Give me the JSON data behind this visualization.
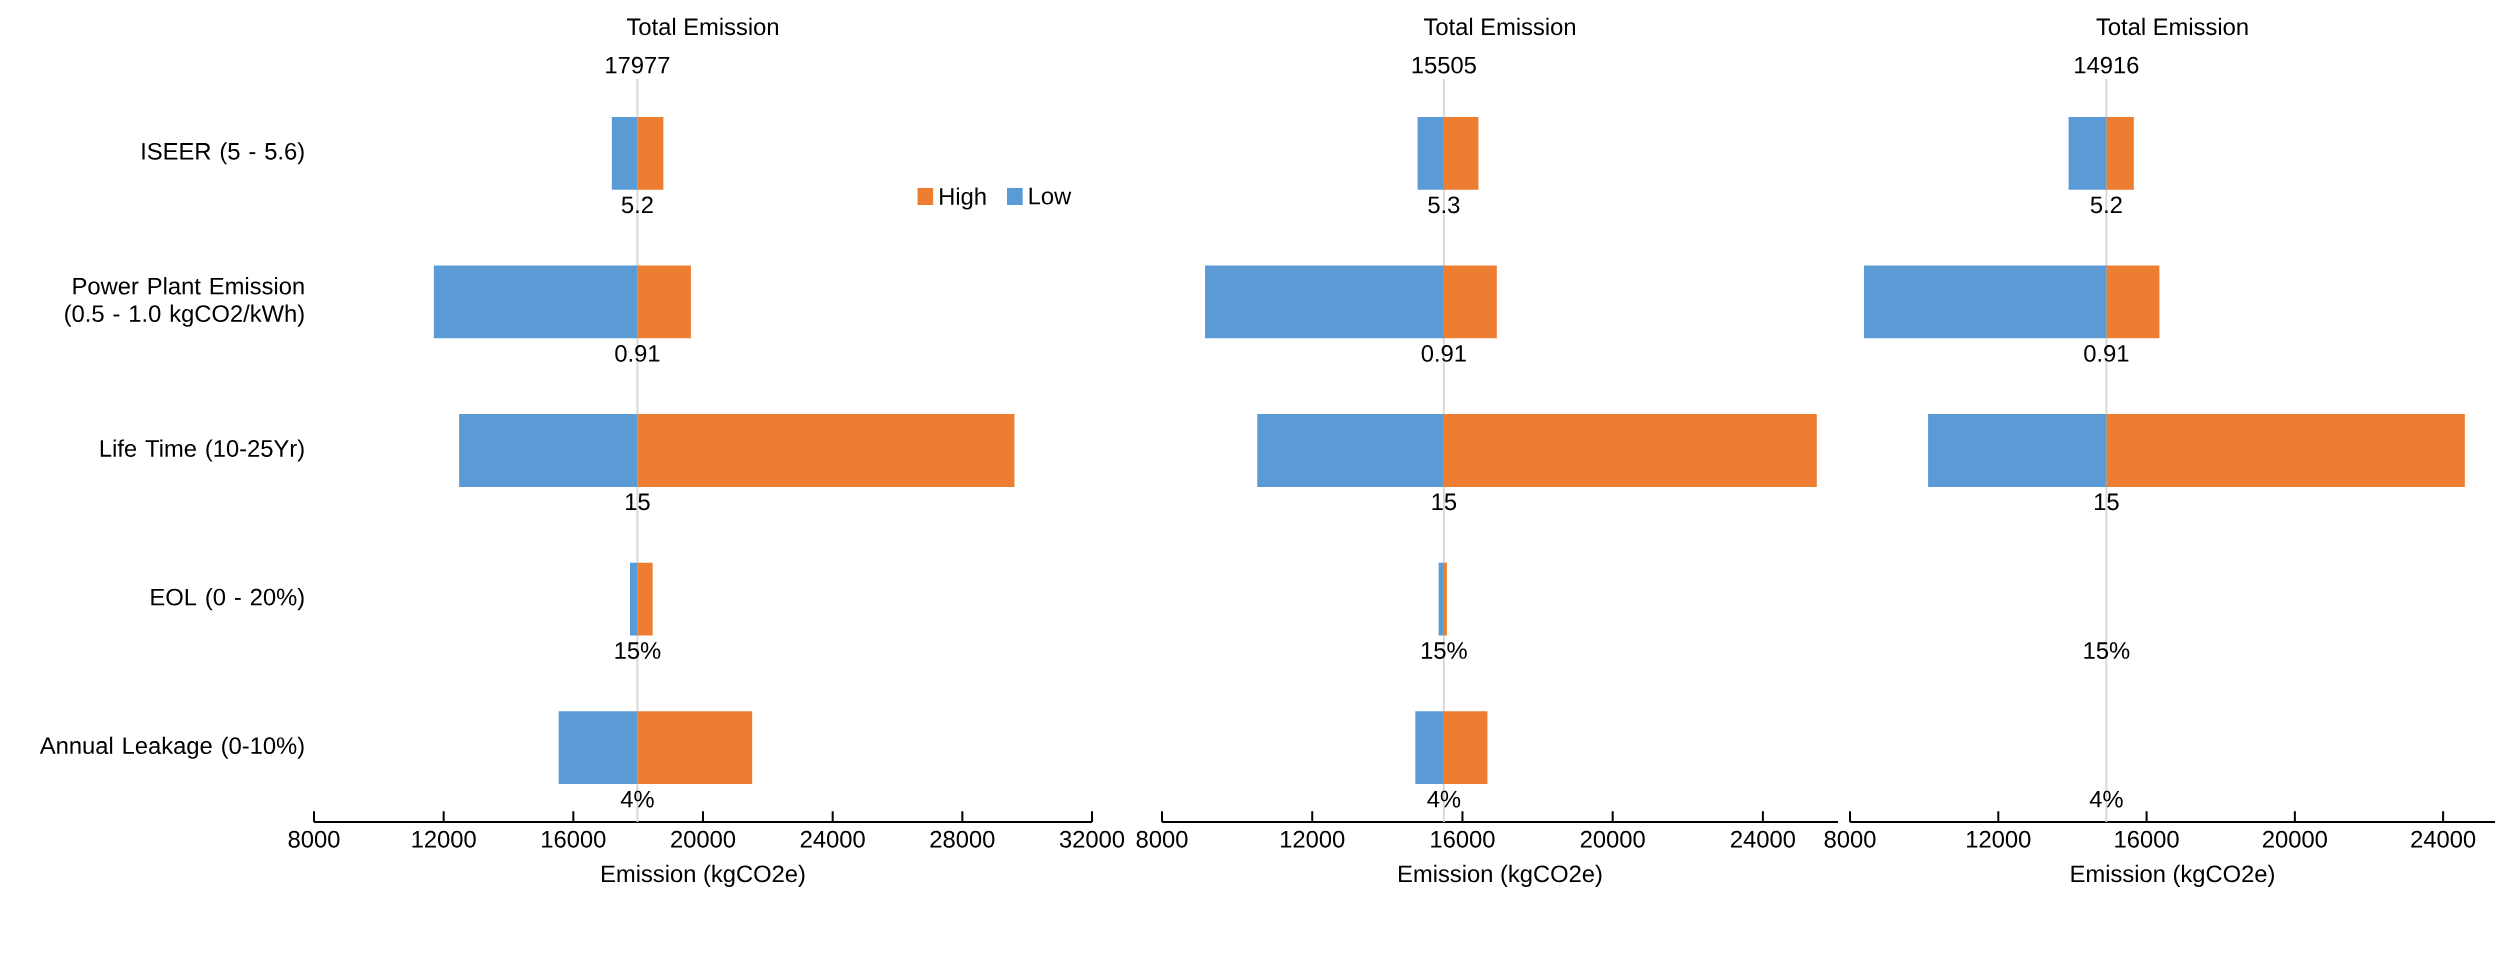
{
  "chart_data": [
    {
      "type": "bar",
      "orientation": "horizontal",
      "title": "Total Emission",
      "xlabel": "Emission (kgCO2e)",
      "categories": [
        "ISEER (5 - 5.6)",
        "Power Plant Emission (0.5 - 1.0 kgCO2/kWh)",
        "Life Time (10-25Yr)",
        "EOL (0 - 20%)",
        "Annual Leakage (0-10%)"
      ],
      "series": [
        {
          "name": "High",
          "color": "#ed7d31",
          "base": [
            17977,
            17977,
            17977,
            17977,
            17977
          ],
          "values": [
            800,
            1650,
            11630,
            470,
            3540
          ]
        },
        {
          "name": "Low",
          "color": "#5b9bd5",
          "base": [
            17977,
            17977,
            17977,
            17977,
            17977
          ],
          "values": [
            -790,
            -6280,
            -5500,
            -230,
            -2430
          ]
        }
      ],
      "xlim": [
        8000,
        32000
      ],
      "xticks": [
        8000,
        12000,
        16000,
        20000,
        24000,
        28000,
        32000
      ],
      "ref_lines": [
        {
          "axis": "x",
          "value": 17977,
          "label": "17977",
          "color": "#d9d9d9"
        }
      ],
      "annotations": [
        {
          "text": "5.2",
          "x": 17977,
          "y": "ISEER (5 - 5.6)"
        },
        {
          "text": "0.91",
          "x": 17977,
          "y": "Power Plant Emission (0.5 - 1.0 kgCO2/kWh)"
        },
        {
          "text": "15",
          "x": 17977,
          "y": "Life Time (10-25Yr)"
        },
        {
          "text": "15%",
          "x": 17977,
          "y": "EOL (0 - 20%)"
        },
        {
          "text": "4%",
          "x": 17977,
          "y": "Annual Leakage (0-10%)"
        }
      ],
      "legend": "top right"
    },
    {
      "type": "bar",
      "orientation": "horizontal",
      "title": "Total Emission",
      "xlabel": "Emission (kgCO2e)",
      "categories": [
        "ISEER (5 - 5.6)",
        "Power Plant Emission (0.5 - 1.0 kgCO2/kWh)",
        "Life Time (10-25Yr)",
        "EOL (0 - 20%)",
        "Annual Leakage (0-10%)"
      ],
      "series": [
        {
          "color": "#ed7d31",
          "base": [
            15505,
            15505,
            15505,
            15505,
            15505
          ],
          "values": [
            920,
            1410,
            9930,
            80,
            1160
          ]
        },
        {
          "color": "#5b9bd5",
          "base": [
            15505,
            15505,
            15505,
            15505,
            15505
          ],
          "values": [
            -700,
            -6360,
            -4970,
            -140,
            -760
          ]
        }
      ],
      "xlim": [
        8000,
        26000
      ],
      "xticks": [
        8000,
        12000,
        16000,
        20000,
        24000
      ],
      "ref_lines": [
        {
          "axis": "x",
          "value": 15505,
          "label": "15505",
          "color": "#d9d9d9"
        }
      ],
      "annotations": [
        {
          "text": "5.3",
          "x": 15505,
          "y": "ISEER (5 - 5.6)"
        },
        {
          "text": "0.91",
          "x": 15505,
          "y": "Power Plant Emission (0.5 - 1.0 kgCO2/kWh)"
        },
        {
          "text": "15",
          "x": 15505,
          "y": "Life Time (10-25Yr)"
        },
        {
          "text": "15%",
          "x": 15505,
          "y": "EOL (0 - 20%)"
        },
        {
          "text": "4%",
          "x": 15505,
          "y": "Annual Leakage (0-10%)"
        }
      ],
      "tick_labels": "x"
    },
    {
      "type": "bar",
      "orientation": "horizontal",
      "title": "Total Emission",
      "xlabel": "Emission (kgCO2e)",
      "categories": [
        "ISEER (5 - 5.6)",
        "Power Plant Emission (0.5 - 1.0 kgCO2/kWh)",
        "Life Time (10-25Yr)",
        "EOL (0 - 20%)",
        "Annual Leakage (0-10%)"
      ],
      "series": [
        {
          "color": "#ed7d31",
          "base": [
            14916,
            14916,
            14916,
            null,
            null
          ],
          "values": [
            740,
            1430,
            9670,
            null,
            null
          ]
        },
        {
          "color": "#5b9bd5",
          "base": [
            14916,
            14916,
            14916,
            null,
            null
          ],
          "values": [
            -1020,
            -6540,
            -4810,
            null,
            null
          ]
        }
      ],
      "xlim": [
        8000,
        25400
      ],
      "xticks": [
        8000,
        12000,
        16000,
        20000,
        24000
      ],
      "ref_lines": [
        {
          "axis": "x",
          "value": 14916,
          "label": "14916",
          "color": "#d9d9d9"
        }
      ],
      "annotations": [
        {
          "text": "5.2",
          "x": 14916,
          "y": "ISEER (5 - 5.6)"
        },
        {
          "text": "0.91",
          "x": 14916,
          "y": "Power Plant Emission (0.5 - 1.0 kgCO2/kWh)"
        },
        {
          "text": "15",
          "x": 14916,
          "y": "Life Time (10-25Yr)"
        },
        {
          "text": "15%",
          "x": 14916,
          "y": "EOL (0 - 20%)"
        },
        {
          "text": "4%",
          "x": 14916,
          "y": "Annual Leakage (0-10%)"
        }
      ],
      "tick_labels": "x"
    }
  ]
}
